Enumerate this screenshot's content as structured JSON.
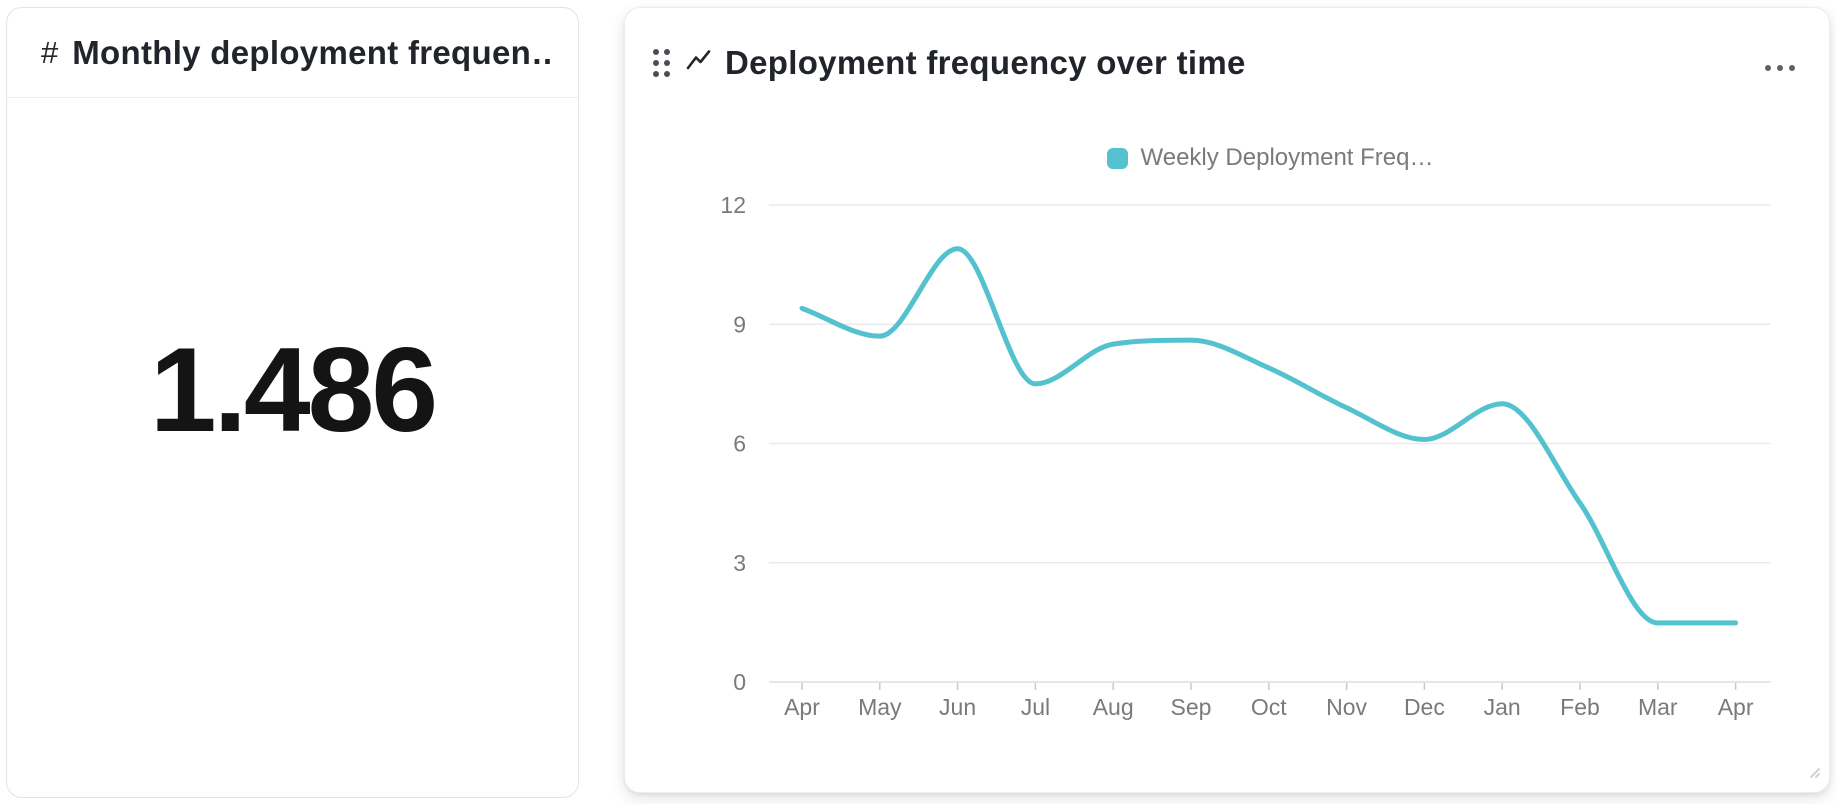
{
  "left_card": {
    "icon_glyph": "#",
    "title": "Monthly deployment frequen…",
    "value": "1.486"
  },
  "right_card": {
    "title": "Deployment frequency over time"
  },
  "chart_data": {
    "type": "line",
    "title": "Deployment frequency over time",
    "categories": [
      "Apr",
      "May",
      "Jun",
      "Jul",
      "Aug",
      "Sep",
      "Oct",
      "Nov",
      "Dec",
      "Jan",
      "Feb",
      "Mar",
      "Apr"
    ],
    "series": [
      {
        "name": "Weekly Deployment Freq…",
        "values": [
          9.4,
          8.7,
          10.9,
          7.5,
          8.5,
          8.6,
          7.9,
          6.9,
          6.1,
          7.0,
          4.5,
          1.486,
          1.486
        ]
      }
    ],
    "xlabel": "",
    "ylabel": "",
    "ylim": [
      0,
      12
    ],
    "yticks": [
      0,
      3,
      6,
      9,
      12
    ],
    "grid": true,
    "smooth": true,
    "legend_position": "top",
    "line_color": "#54c2ce",
    "gridline_color": "#ebebeb",
    "axis_line_color": "#dedede",
    "tick_color": "#c9c9c9",
    "axis_label_color": "#7a7a7a"
  }
}
